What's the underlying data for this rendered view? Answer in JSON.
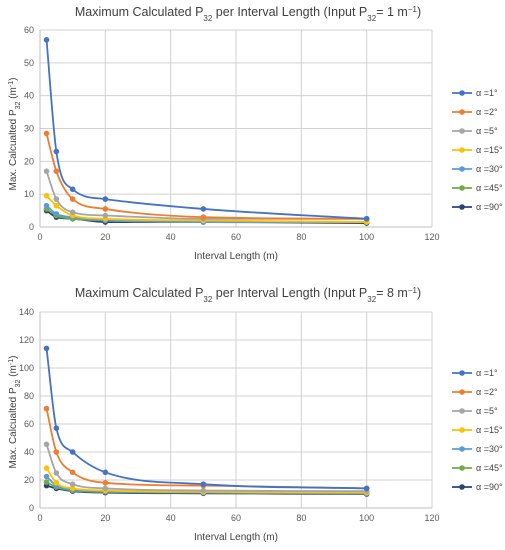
{
  "chart_data": [
    {
      "type": "line",
      "title_prefix": "Maximum Calculated P",
      "title_sub": "32",
      "title_mid": " per Interval Length  (Input P",
      "title_sub2": "32",
      "title_suffix": "= 1 m",
      "title_sup": "−1",
      "title_end": ")",
      "xlabel": "Interval Length (m)",
      "ylabel_main": "Max. Calcualted P",
      "ylabel_sub": "32",
      "ylabel_unit": " (m",
      "ylabel_sup": "-1",
      "ylabel_end": ")",
      "xlim": [
        0,
        120
      ],
      "ylim": [
        0,
        60
      ],
      "xticks": [
        0,
        20,
        40,
        60,
        80,
        100,
        120
      ],
      "yticks": [
        0,
        10,
        20,
        30,
        40,
        50,
        60
      ],
      "grid": true,
      "legend_placement": "right",
      "series": [
        {
          "name": "α =1°",
          "color": "#4472c4",
          "x": [
            2,
            5,
            10,
            20,
            50,
            100
          ],
          "y": [
            57,
            23,
            11.5,
            8.5,
            5.5,
            2.5
          ]
        },
        {
          "name": "α =2°",
          "color": "#ed7d31",
          "x": [
            2,
            5,
            10,
            20,
            50,
            100
          ],
          "y": [
            28.5,
            17,
            8.5,
            5.5,
            3,
            2.5
          ]
        },
        {
          "name": "α =5°",
          "color": "#a5a5a5",
          "x": [
            2,
            5,
            10,
            20,
            50,
            100
          ],
          "y": [
            17,
            8.5,
            4.5,
            3.5,
            2.5,
            2.5
          ]
        },
        {
          "name": "α =15°",
          "color": "#ffc000",
          "x": [
            2,
            5,
            10,
            20,
            50,
            100
          ],
          "y": [
            9.5,
            6.5,
            3.5,
            2.5,
            2,
            1.5
          ]
        },
        {
          "name": "α =30°",
          "color": "#5b9bd5",
          "x": [
            2,
            5,
            10,
            20,
            50,
            100
          ],
          "y": [
            6.5,
            4,
            3,
            2,
            1.5,
            1.5
          ]
        },
        {
          "name": "α =45°",
          "color": "#70ad47",
          "x": [
            2,
            5,
            10,
            20,
            50,
            100
          ],
          "y": [
            5.5,
            3.5,
            2.5,
            2,
            1.5,
            1.5
          ]
        },
        {
          "name": "α =90°",
          "color": "#264478",
          "x": [
            2,
            5,
            10,
            20,
            50,
            100
          ],
          "y": [
            5,
            3,
            2.5,
            1.5,
            1.5,
            1.2
          ]
        }
      ]
    },
    {
      "type": "line",
      "title_prefix": "Maximum Calculated P",
      "title_sub": "32",
      "title_mid": " per Interval Length  (Input P",
      "title_sub2": "32",
      "title_suffix": "= 8 m",
      "title_sup": "−1",
      "title_end": ")",
      "xlabel": "Interval Length (m)",
      "ylabel_main": "Max. Calcualted P",
      "ylabel_sub": "32",
      "ylabel_unit": " (m",
      "ylabel_sup": "-1",
      "ylabel_end": ")",
      "xlim": [
        0,
        120
      ],
      "ylim": [
        0,
        140
      ],
      "xticks": [
        0,
        20,
        40,
        60,
        80,
        100,
        120
      ],
      "yticks": [
        0,
        20,
        40,
        60,
        80,
        100,
        120,
        140
      ],
      "grid": true,
      "legend_placement": "right",
      "series": [
        {
          "name": "α =1°",
          "color": "#4472c4",
          "x": [
            2,
            5,
            10,
            20,
            50,
            100
          ],
          "y": [
            114,
            57,
            40,
            25.5,
            17,
            14
          ]
        },
        {
          "name": "α =2°",
          "color": "#ed7d31",
          "x": [
            2,
            5,
            10,
            20,
            50,
            100
          ],
          "y": [
            71,
            40,
            25.5,
            18,
            16,
            14
          ]
        },
        {
          "name": "α =5°",
          "color": "#a5a5a5",
          "x": [
            2,
            5,
            10,
            20,
            50,
            100
          ],
          "y": [
            45.5,
            25,
            17,
            14,
            12.5,
            12
          ]
        },
        {
          "name": "α =15°",
          "color": "#ffc000",
          "x": [
            2,
            5,
            10,
            20,
            50,
            100
          ],
          "y": [
            28.5,
            18,
            14,
            12.5,
            11.5,
            11
          ]
        },
        {
          "name": "α =30°",
          "color": "#5b9bd5",
          "x": [
            2,
            5,
            10,
            20,
            50,
            100
          ],
          "y": [
            22.5,
            16,
            13,
            12,
            11,
            10.5
          ]
        },
        {
          "name": "α =45°",
          "color": "#70ad47",
          "x": [
            2,
            5,
            10,
            20,
            50,
            100
          ],
          "y": [
            18.5,
            15,
            12.5,
            11.5,
            11,
            10.5
          ]
        },
        {
          "name": "α =90°",
          "color": "#264478",
          "x": [
            2,
            5,
            10,
            20,
            50,
            100
          ],
          "y": [
            16,
            14,
            12,
            11,
            10.5,
            10
          ]
        }
      ]
    }
  ]
}
